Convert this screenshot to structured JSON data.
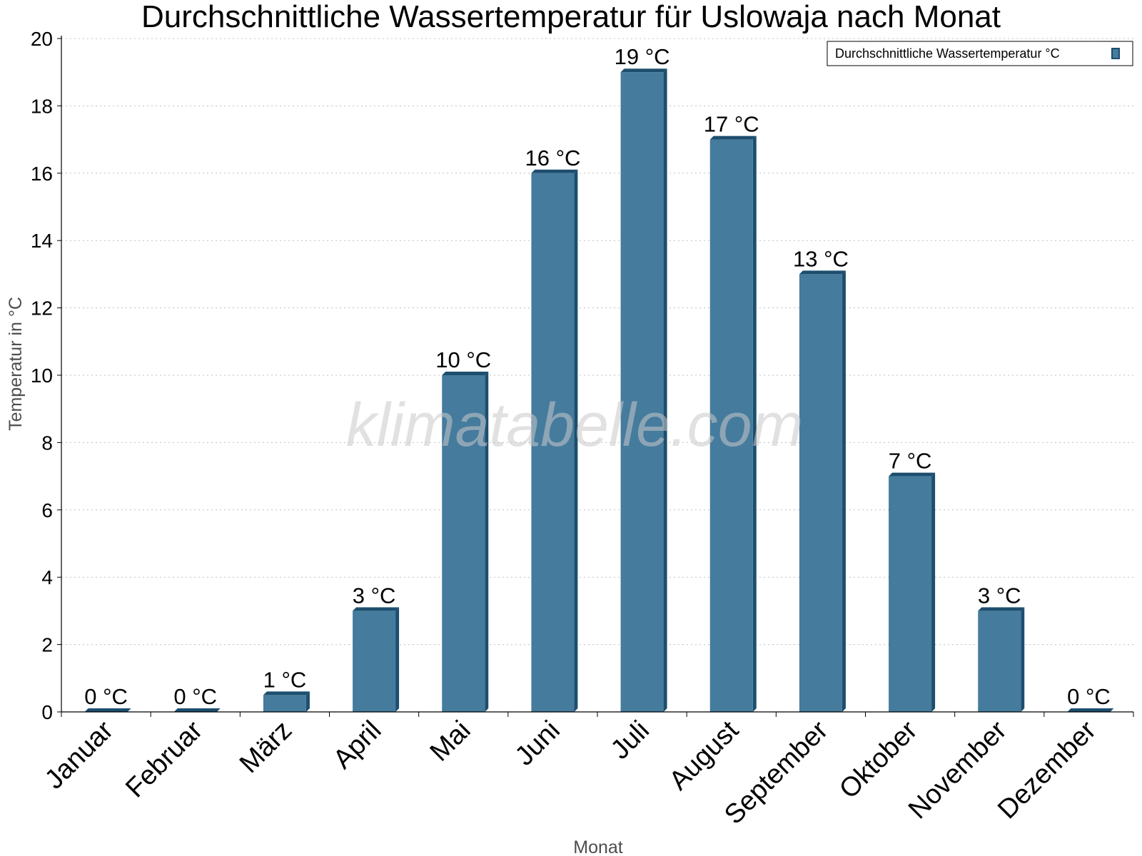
{
  "chart_data": {
    "type": "bar",
    "title": "Durchschnittliche Wassertemperatur für Uslowaja nach Monat",
    "xlabel": "Monat",
    "ylabel": "Temperatur in °C",
    "ylim": [
      0,
      20
    ],
    "yticks": [
      0,
      2,
      4,
      6,
      8,
      10,
      12,
      14,
      16,
      18,
      20
    ],
    "grid": true,
    "legend_position": "top-right",
    "categories": [
      "Januar",
      "Februar",
      "März",
      "April",
      "Mai",
      "Juni",
      "Juli",
      "August",
      "September",
      "Oktober",
      "November",
      "Dezember"
    ],
    "series": [
      {
        "name": "Durchschnittliche Wassertemperatur °C",
        "values": [
          0,
          0,
          0.5,
          3,
          10,
          16,
          19,
          17,
          13,
          7,
          3,
          0
        ],
        "labels": [
          "0 °C",
          "0 °C",
          "1 °C",
          "3 °C",
          "10 °C",
          "16 °C",
          "19 °C",
          "17 °C",
          "13 °C",
          "7 °C",
          "3 °C",
          "0 °C"
        ]
      }
    ],
    "colors": {
      "bar": "#457b9d",
      "bar_side": "#1d4e6e",
      "bar_top": "#1d4e6e",
      "grid": "#bfbfbf",
      "axis": "#000000"
    },
    "watermark": "klimatabelle.com"
  }
}
